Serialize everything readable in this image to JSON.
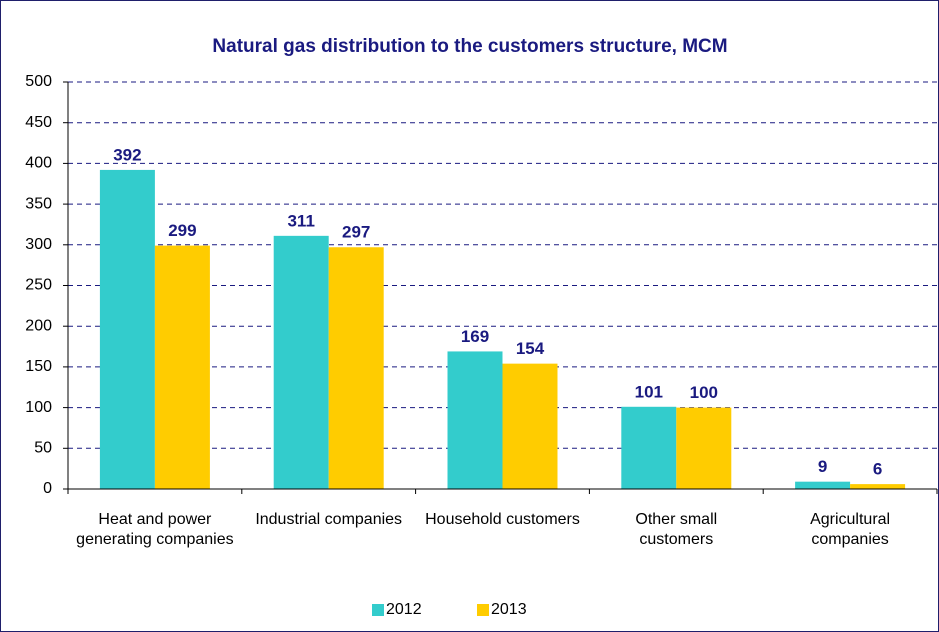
{
  "chart_data": {
    "type": "bar",
    "title": "Natural gas distribution to the customers structure, MCM",
    "categories": [
      "Heat and power generating companies",
      "Industrial companies",
      "Household customers",
      "Other small customers",
      "Agricultural companies"
    ],
    "series": [
      {
        "name": "2012",
        "color": "#33cccc",
        "values": [
          392,
          311,
          169,
          101,
          9
        ]
      },
      {
        "name": "2013",
        "color": "#ffcc00",
        "values": [
          299,
          297,
          154,
          100,
          6
        ]
      }
    ],
    "ylim": [
      0,
      500
    ],
    "yticks": [
      0,
      50,
      100,
      150,
      200,
      250,
      300,
      350,
      400,
      450,
      500
    ],
    "grid": true,
    "legend": "bottom"
  }
}
